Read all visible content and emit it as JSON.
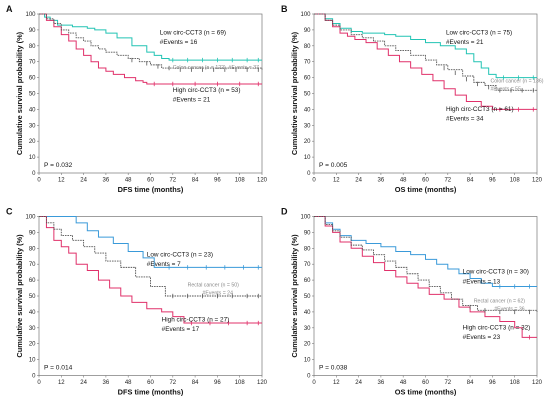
{
  "chart_data": [
    {
      "panel": "A",
      "type": "line",
      "xlabel": "DFS time (months)",
      "ylabel": "Cumulative survival probability (%)",
      "xlim": [
        0,
        120
      ],
      "ylim": [
        0,
        100
      ],
      "xticks": [
        0,
        12,
        24,
        36,
        48,
        60,
        72,
        84,
        96,
        108,
        120
      ],
      "yticks": [
        0,
        10,
        20,
        30,
        40,
        50,
        60,
        70,
        80,
        90,
        100
      ],
      "p_value": "P = 0.032",
      "annotations": [
        {
          "text": "Low circ-CCT3 (n = 69)",
          "color": "#111111",
          "size": "main"
        },
        {
          "text": "#Events = 16",
          "color": "#111111",
          "size": "main"
        },
        {
          "text": "Colon cancer (n = 122), #Events = 37",
          "color": "#888888",
          "size": "ref"
        },
        {
          "text": "High circ-CCT3 (n = 53)",
          "color": "#111111",
          "size": "main"
        },
        {
          "text": "#Events = 21",
          "color": "#111111",
          "size": "main"
        }
      ],
      "series": [
        {
          "color": "#22c4b4",
          "x": [
            0,
            3,
            6,
            10,
            14,
            18,
            22,
            26,
            30,
            36,
            42,
            50,
            58,
            62,
            66,
            70,
            120
          ],
          "y": [
            100,
            98,
            96,
            93,
            93,
            92,
            92,
            91,
            90,
            88,
            85,
            80,
            76,
            74,
            72,
            71,
            71
          ],
          "censored": [
            [
              72,
              71
            ],
            [
              80,
              71
            ],
            [
              88,
              71
            ],
            [
              96,
              71
            ],
            [
              104,
              71
            ],
            [
              112,
              71
            ],
            [
              118,
              71
            ]
          ]
        },
        {
          "color": "#e0306a",
          "x": [
            0,
            4,
            8,
            12,
            16,
            20,
            24,
            28,
            32,
            36,
            40,
            46,
            52,
            56,
            58,
            120
          ],
          "y": [
            100,
            96,
            92,
            87,
            83,
            78,
            74,
            70,
            66,
            64,
            62,
            60,
            58,
            57,
            56,
            56
          ],
          "censored": [
            [
              62,
              56
            ],
            [
              72,
              56
            ],
            [
              84,
              56
            ],
            [
              96,
              56
            ],
            [
              108,
              56
            ],
            [
              118,
              56
            ]
          ]
        },
        {
          "color": "#555555",
          "x": [
            0,
            4,
            8,
            12,
            16,
            20,
            24,
            28,
            32,
            36,
            42,
            48,
            54,
            60,
            66,
            120
          ],
          "y": [
            100,
            97,
            94,
            90,
            88,
            85,
            83,
            80,
            78,
            76,
            74,
            72,
            70,
            68,
            66,
            65
          ],
          "censored": [
            [
              50,
              71
            ],
            [
              58,
              69
            ],
            [
              64,
              67
            ],
            [
              70,
              66
            ],
            [
              76,
              65
            ],
            [
              82,
              65
            ],
            [
              88,
              65
            ],
            [
              94,
              65
            ],
            [
              100,
              65
            ],
            [
              106,
              65
            ],
            [
              112,
              65
            ],
            [
              118,
              65
            ]
          ]
        }
      ]
    },
    {
      "panel": "B",
      "type": "line",
      "xlabel": "OS time (months)",
      "ylabel": "Cumulative survival probability (%)",
      "xlim": [
        0,
        120
      ],
      "ylim": [
        0,
        100
      ],
      "xticks": [
        0,
        12,
        24,
        36,
        48,
        60,
        72,
        84,
        96,
        108,
        120
      ],
      "yticks": [
        0,
        10,
        20,
        30,
        40,
        50,
        60,
        70,
        80,
        90,
        100
      ],
      "p_value": "P = 0.005",
      "annotations": [
        {
          "text": "Low circ-CCT3 (n = 75)",
          "color": "#111111",
          "size": "main"
        },
        {
          "text": "#Events = 21",
          "color": "#111111",
          "size": "main"
        },
        {
          "text": "Colon cancer (n = 136)",
          "color": "#888888",
          "size": "ref"
        },
        {
          "text": "#Events = 55",
          "color": "#888888",
          "size": "ref"
        },
        {
          "text": "High circ-CCT3 (n = 61)",
          "color": "#111111",
          "size": "main"
        },
        {
          "text": "#Events = 34",
          "color": "#111111",
          "size": "main"
        }
      ],
      "series": [
        {
          "color": "#22c4b4",
          "x": [
            0,
            6,
            10,
            14,
            20,
            26,
            32,
            38,
            44,
            52,
            60,
            68,
            76,
            82,
            86,
            90,
            94,
            98,
            120
          ],
          "y": [
            100,
            97,
            94,
            91,
            89,
            88,
            88,
            87,
            86,
            84,
            82,
            80,
            78,
            75,
            70,
            66,
            62,
            60,
            60
          ],
          "censored": [
            [
              102,
              60
            ],
            [
              110,
              60
            ],
            [
              118,
              60
            ]
          ]
        },
        {
          "color": "#e0306a",
          "x": [
            0,
            6,
            10,
            14,
            18,
            22,
            28,
            34,
            40,
            46,
            52,
            58,
            64,
            70,
            76,
            82,
            90,
            96,
            120
          ],
          "y": [
            100,
            96,
            92,
            88,
            86,
            84,
            82,
            78,
            74,
            70,
            66,
            62,
            58,
            53,
            49,
            45,
            42,
            40,
            40
          ],
          "censored": [
            [
              100,
              40
            ],
            [
              110,
              40
            ],
            [
              118,
              40
            ]
          ]
        },
        {
          "color": "#555555",
          "x": [
            0,
            6,
            10,
            14,
            20,
            26,
            32,
            38,
            44,
            52,
            60,
            66,
            72,
            80,
            86,
            92,
            98,
            120
          ],
          "y": [
            100,
            96,
            93,
            90,
            87,
            85,
            83,
            80,
            77,
            74,
            71,
            68,
            65,
            61,
            57,
            55,
            52,
            52
          ],
          "censored": [
            [
              70,
              66
            ],
            [
              76,
              63
            ],
            [
              82,
              59
            ],
            [
              88,
              56
            ],
            [
              94,
              54
            ],
            [
              100,
              52
            ],
            [
              106,
              52
            ],
            [
              112,
              52
            ],
            [
              118,
              52
            ]
          ]
        }
      ]
    },
    {
      "panel": "C",
      "type": "line",
      "xlabel": "DFS time (months)",
      "ylabel": "Cumulative survival probability (%)",
      "xlim": [
        0,
        120
      ],
      "ylim": [
        0,
        100
      ],
      "xticks": [
        0,
        12,
        24,
        36,
        48,
        60,
        72,
        84,
        96,
        108,
        120
      ],
      "yticks": [
        0,
        10,
        20,
        30,
        40,
        50,
        60,
        70,
        80,
        90,
        100
      ],
      "p_value": "P = 0.014",
      "annotations": [
        {
          "text": "Low circ-CCT3 (n = 23)",
          "color": "#111111",
          "size": "main"
        },
        {
          "text": "#Events = 7",
          "color": "#111111",
          "size": "main"
        },
        {
          "text": "Rectal cancer (n = 50)",
          "color": "#888888",
          "size": "ref"
        },
        {
          "text": "#Events = 24",
          "color": "#888888",
          "size": "ref"
        },
        {
          "text": "High circ-CCT3 (n = 27)",
          "color": "#111111",
          "size": "main"
        },
        {
          "text": "#Events = 17",
          "color": "#111111",
          "size": "main"
        }
      ],
      "series": [
        {
          "color": "#3a9ad9",
          "x": [
            0,
            16,
            20,
            26,
            32,
            40,
            48,
            56,
            62,
            120
          ],
          "y": [
            100,
            100,
            96,
            91,
            87,
            83,
            78,
            74,
            68,
            68
          ],
          "censored": [
            [
              70,
              68
            ],
            [
              80,
              68
            ],
            [
              90,
              68
            ],
            [
              100,
              68
            ],
            [
              110,
              68
            ],
            [
              118,
              68
            ]
          ]
        },
        {
          "color": "#e0306a",
          "x": [
            0,
            4,
            8,
            12,
            16,
            20,
            26,
            32,
            38,
            44,
            50,
            58,
            66,
            72,
            78,
            120
          ],
          "y": [
            100,
            93,
            85,
            81,
            77,
            70,
            66,
            60,
            55,
            50,
            46,
            42,
            40,
            37,
            33,
            33
          ],
          "censored": [
            [
              82,
              33
            ],
            [
              92,
              33
            ],
            [
              102,
              33
            ],
            [
              112,
              33
            ],
            [
              118,
              33
            ]
          ]
        },
        {
          "color": "#555555",
          "x": [
            0,
            4,
            8,
            12,
            18,
            24,
            30,
            36,
            44,
            52,
            60,
            68,
            120
          ],
          "y": [
            100,
            96,
            92,
            88,
            85,
            81,
            77,
            72,
            68,
            62,
            56,
            50,
            50
          ],
          "censored": [
            [
              72,
              50
            ],
            [
              80,
              50
            ],
            [
              88,
              50
            ],
            [
              96,
              50
            ],
            [
              104,
              50
            ],
            [
              112,
              50
            ],
            [
              118,
              50
            ]
          ]
        }
      ]
    },
    {
      "panel": "D",
      "type": "line",
      "xlabel": "OS time (months)",
      "ylabel": "Cumulative survival probability (%)",
      "xlim": [
        0,
        120
      ],
      "ylim": [
        0,
        100
      ],
      "xticks": [
        0,
        12,
        24,
        36,
        48,
        60,
        72,
        84,
        96,
        108,
        120
      ],
      "yticks": [
        0,
        10,
        20,
        30,
        40,
        50,
        60,
        70,
        80,
        90,
        100
      ],
      "p_value": "P = 0.038",
      "annotations": [
        {
          "text": "Low circ-CCT3 (n = 30)",
          "color": "#111111",
          "size": "main"
        },
        {
          "text": "#Events = 13",
          "color": "#111111",
          "size": "main"
        },
        {
          "text": "Rectal cancer (n = 62)",
          "color": "#888888",
          "size": "ref"
        },
        {
          "text": "#Events = 36",
          "color": "#888888",
          "size": "ref"
        },
        {
          "text": "High circ-CCT3 (n = 32)",
          "color": "#111111",
          "size": "main"
        },
        {
          "text": "#Events = 23",
          "color": "#111111",
          "size": "main"
        }
      ],
      "series": [
        {
          "color": "#3a9ad9",
          "x": [
            0,
            6,
            10,
            14,
            20,
            28,
            36,
            44,
            52,
            60,
            66,
            72,
            78,
            84,
            90,
            96,
            120
          ],
          "y": [
            100,
            96,
            92,
            88,
            85,
            83,
            81,
            78,
            76,
            73,
            70,
            67,
            64,
            61,
            58,
            56,
            56
          ],
          "censored": [
            [
              100,
              56
            ],
            [
              108,
              56
            ],
            [
              116,
              56
            ]
          ]
        },
        {
          "color": "#e0306a",
          "x": [
            0,
            6,
            10,
            14,
            20,
            26,
            32,
            38,
            44,
            50,
            56,
            62,
            70,
            78,
            84,
            92,
            100,
            108,
            112,
            120
          ],
          "y": [
            100,
            94,
            90,
            84,
            80,
            75,
            71,
            66,
            62,
            58,
            55,
            51,
            48,
            43,
            40,
            37,
            34,
            30,
            24,
            24
          ],
          "censored": [
            [
              116,
              24
            ]
          ]
        },
        {
          "color": "#555555",
          "x": [
            0,
            6,
            10,
            14,
            20,
            26,
            32,
            38,
            44,
            50,
            56,
            62,
            68,
            74,
            80,
            88,
            120
          ],
          "y": [
            100,
            95,
            91,
            87,
            82,
            79,
            76,
            72,
            68,
            64,
            60,
            56,
            52,
            48,
            44,
            41,
            40
          ],
          "censored": [
            [
              84,
              43
            ],
            [
              92,
              41
            ],
            [
              100,
              40
            ],
            [
              108,
              40
            ],
            [
              116,
              40
            ]
          ]
        }
      ]
    }
  ]
}
